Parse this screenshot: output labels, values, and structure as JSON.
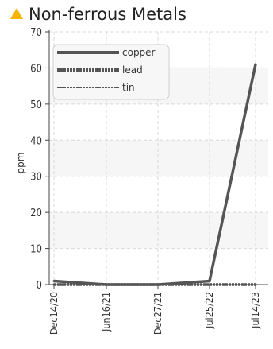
{
  "header": {
    "title": "Non-ferrous Metals",
    "icon": "warning-triangle-icon",
    "icon_color": "#f5b400"
  },
  "chart_data": {
    "type": "line",
    "title": "Non-ferrous Metals",
    "xlabel": "",
    "ylabel": "ppm",
    "x": [
      "Dec14/20",
      "Jun16/21",
      "Dec27/21",
      "Jul25/22",
      "Jul14/23"
    ],
    "x_tick_labels": [
      "Dec14/20",
      "Jun16/21",
      "Dec27/21",
      "Jul25/22",
      "Jul14/23"
    ],
    "ylim": [
      0,
      70
    ],
    "y_ticks": [
      0,
      10,
      20,
      30,
      40,
      50,
      60,
      70
    ],
    "grid": true,
    "legend_position": "top-left",
    "series": [
      {
        "name": "copper",
        "values": [
          1,
          0,
          0,
          1,
          61
        ],
        "color": "#555555",
        "style": "solid"
      },
      {
        "name": "lead",
        "values": [
          0,
          0,
          0,
          0,
          0
        ],
        "color": "#555555",
        "style": "dashed-thick"
      },
      {
        "name": "tin",
        "values": [
          0,
          0,
          0,
          0,
          0
        ],
        "color": "#555555",
        "style": "dashed-thin"
      }
    ]
  }
}
